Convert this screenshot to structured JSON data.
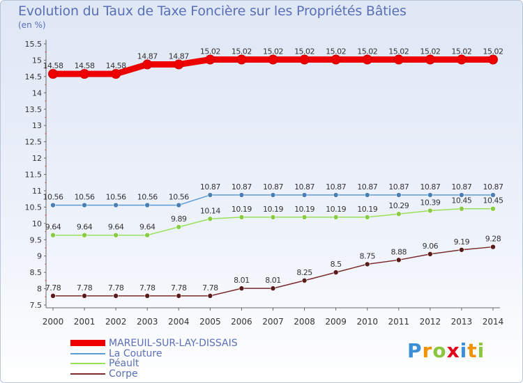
{
  "title": "Evolution du Taux de Taxe Foncière sur les Propriétés Bâties",
  "unit": "(en %)",
  "chart_data": {
    "type": "line",
    "title": "Evolution du Taux de Taxe Foncière sur les Propriétés Bâties",
    "ylabel": "(en %)",
    "xlabel": "",
    "ylim": [
      7.5,
      15.5
    ],
    "y_ticks": [
      "7.5",
      "8",
      "8.5",
      "9",
      "9.5",
      "10",
      "10.5",
      "11",
      "11.5",
      "12",
      "12.5",
      "13",
      "13.5",
      "14",
      "14.5",
      "15",
      "15.5"
    ],
    "x": [
      "2000",
      "2001",
      "2002",
      "2003",
      "2004",
      "2005",
      "2006",
      "2007",
      "2008",
      "2009",
      "2010",
      "2011",
      "2012",
      "2013",
      "2014"
    ],
    "series": [
      {
        "name": "MAREUIL-SUR-LAY-DISSAIS",
        "color": "#ee0000",
        "values": [
          14.58,
          14.58,
          14.58,
          14.87,
          14.87,
          15.02,
          15.02,
          15.02,
          15.02,
          15.02,
          15.02,
          15.02,
          15.02,
          15.02,
          15.02
        ],
        "labels": [
          "14.58",
          "14.58",
          "14.58",
          "14.87",
          "14.87",
          "15.02",
          "15.02",
          "15.02",
          "15.02",
          "15.02",
          "15.02",
          "15.02",
          "15.02",
          "15.02",
          "15.02"
        ]
      },
      {
        "name": "La Couture",
        "color": "#5b9bd5",
        "values": [
          10.56,
          10.56,
          10.56,
          10.56,
          10.56,
          10.87,
          10.87,
          10.87,
          10.87,
          10.87,
          10.87,
          10.87,
          10.87,
          10.87,
          10.87
        ],
        "labels": [
          "10.56",
          "10.56",
          "10.56",
          "10.56",
          "10.56",
          "10.87",
          "10.87",
          "10.87",
          "10.87",
          "10.87",
          "10.87",
          "10.87",
          "10.87",
          "10.87",
          "10.87"
        ]
      },
      {
        "name": "Péault",
        "color": "#99e05a",
        "values": [
          9.64,
          9.64,
          9.64,
          9.64,
          9.89,
          10.14,
          10.19,
          10.19,
          10.19,
          10.19,
          10.19,
          10.29,
          10.39,
          10.45,
          10.45
        ],
        "labels": [
          "9.64",
          "9.64",
          "9.64",
          "9.64",
          "9.89",
          "10.14",
          "10.19",
          "10.19",
          "10.19",
          "10.19",
          "10.19",
          "10.29",
          "10.39",
          "10.45",
          "10.45"
        ]
      },
      {
        "name": "Corpe",
        "color": "#7a2a2a",
        "values": [
          7.78,
          7.78,
          7.78,
          7.78,
          7.78,
          7.78,
          8.01,
          8.01,
          8.25,
          8.5,
          8.75,
          8.88,
          9.06,
          9.19,
          9.28
        ],
        "labels": [
          "7.78",
          "7.78",
          "7.78",
          "7.78",
          "7.78",
          "7.78",
          "8.01",
          "8.01",
          "8.25",
          "8.5",
          "8.75",
          "8.88",
          "9.06",
          "9.19",
          "9.28"
        ]
      }
    ],
    "legend": [
      "MAREUIL-SUR-LAY-DISSAIS",
      "La Couture",
      "Péault",
      "Corpe"
    ],
    "legend_position": "bottom-left",
    "grid": false
  },
  "logo": {
    "letters": [
      "P",
      "r",
      "o",
      "x",
      "i",
      "t",
      "i"
    ],
    "colors": [
      "#3a8fd6",
      "#f39200",
      "#8cc63f",
      "#e2001a",
      "#3a8fd6",
      "#f39200",
      "#8cc63f"
    ]
  }
}
